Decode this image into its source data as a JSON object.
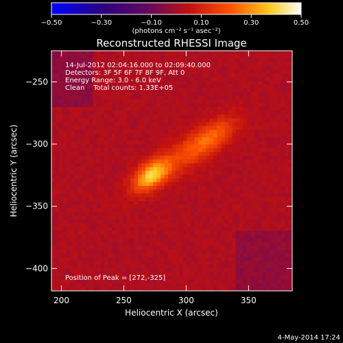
{
  "chart_data": {
    "type": "heatmap",
    "title": "Reconstructed RHESSI Image",
    "xlabel": "Heliocentric X (arcsec)",
    "ylabel": "Heliocentric Y (arcsec)",
    "xlim": [
      192,
      385
    ],
    "ylim": [
      -418,
      -225
    ],
    "x_ticks": [
      200,
      250,
      300,
      350
    ],
    "y_ticks": [
      -250,
      -300,
      -350,
      -400
    ],
    "colorbar": {
      "range": [
        -0.5,
        0.5
      ],
      "ticks": [
        "-0.50",
        "-0.30",
        "-0.10",
        "0.10",
        "0.30",
        "0.50"
      ],
      "unit_label": "(photons cm⁻² s⁻¹ asec⁻²)",
      "colormap": "blue-purple-red-yellow-white"
    },
    "annotations": [
      "14-Jul-2012 02:04:16.000 to 02:09:40.000",
      "Detectors: 3F 5F 6F 7F 8F 9F, Att 0",
      "Energy Range: 3.0 - 6.0 keV",
      "Clean    Total counts: 1.33E+05"
    ],
    "peak_label": "Position of Peak = [272,-325]",
    "peak": {
      "x": 272,
      "y": -325,
      "value": 0.5
    },
    "secondary_source": {
      "x": 320,
      "y": -295,
      "value": 0.36
    },
    "background_level": 0.17,
    "date_stamp": "4-May-2014 17:24"
  }
}
